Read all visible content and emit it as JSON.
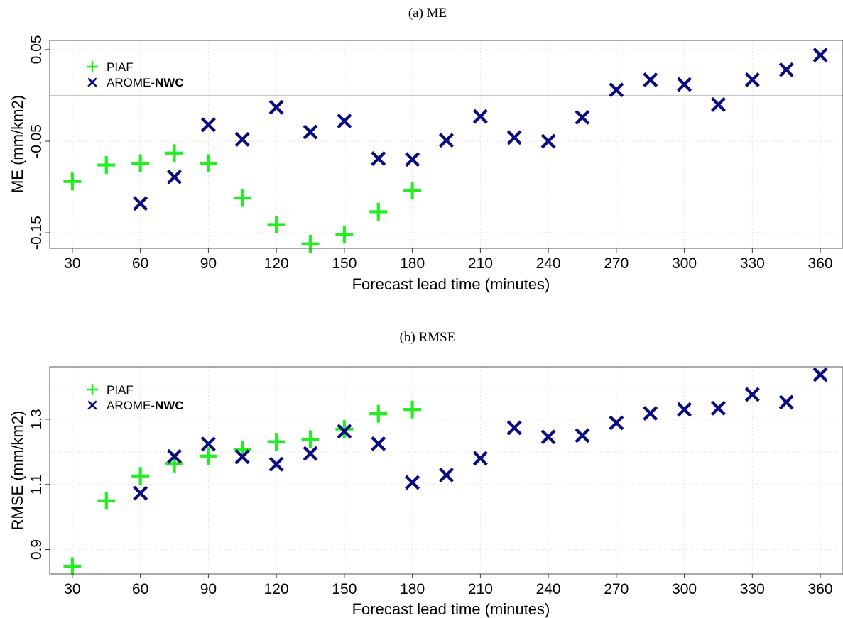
{
  "colors": {
    "piaf": "#22ee22",
    "arome": "#0a0a80",
    "grid": "#e2e2e2",
    "zero_line": "#c8c8c8",
    "axis": "#555555"
  },
  "chart_data": [
    {
      "type": "scatter",
      "title": "(a) ME",
      "xlabel": "Forecast lead time (minutes)",
      "ylabel": "ME (mm/km2)",
      "x_ticks": [
        30,
        60,
        90,
        120,
        150,
        180,
        210,
        240,
        270,
        300,
        330,
        360
      ],
      "x_tick_labels": [
        "30",
        "60",
        "90",
        "120",
        "150",
        "180",
        "210",
        "240",
        "270",
        "300",
        "330",
        "360"
      ],
      "y_ticks": [
        0.05,
        -0.05,
        -0.15
      ],
      "y_tick_labels": [
        "0.05",
        "-0.05",
        "-0.15"
      ],
      "xlim": [
        20,
        370
      ],
      "ylim": [
        -0.167,
        0.06
      ],
      "zero_line": true,
      "grid": true,
      "legend_position": "top-left",
      "legend": [
        {
          "marker": "plus",
          "name": "PIAF",
          "color_key": "piaf"
        },
        {
          "marker": "cross",
          "name_plain": "AROME-",
          "name_bold": "NWC",
          "color_key": "arome"
        }
      ],
      "series": [
        {
          "name": "PIAF",
          "marker": "plus",
          "color_key": "piaf",
          "x": [
            30,
            45,
            60,
            75,
            90,
            105,
            120,
            135,
            150,
            165,
            180
          ],
          "y": [
            -0.094,
            -0.076,
            -0.074,
            -0.063,
            -0.074,
            -0.112,
            -0.141,
            -0.162,
            -0.152,
            -0.127,
            -0.104
          ]
        },
        {
          "name": "AROME-NWC",
          "marker": "cross",
          "color_key": "arome",
          "x": [
            60,
            75,
            90,
            105,
            120,
            135,
            150,
            165,
            180,
            195,
            210,
            225,
            240,
            255,
            270,
            285,
            300,
            315,
            330,
            345,
            360
          ],
          "y": [
            -0.118,
            -0.089,
            -0.032,
            -0.048,
            -0.013,
            -0.04,
            -0.028,
            -0.069,
            -0.07,
            -0.049,
            -0.023,
            -0.046,
            -0.05,
            -0.024,
            0.006,
            0.017,
            0.012,
            -0.01,
            0.017,
            0.028,
            0.044
          ]
        }
      ]
    },
    {
      "type": "scatter",
      "title": "(b) RMSE",
      "xlabel": "Forecast lead time (minutes)",
      "ylabel": "RMSE (mm/km2)",
      "x_ticks": [
        30,
        60,
        90,
        120,
        150,
        180,
        210,
        240,
        270,
        300,
        330,
        360
      ],
      "x_tick_labels": [
        "30",
        "60",
        "90",
        "120",
        "150",
        "180",
        "210",
        "240",
        "270",
        "300",
        "330",
        "360"
      ],
      "y_ticks": [
        0.9,
        1.1,
        1.3
      ],
      "y_tick_labels": [
        "0.9",
        "1.1",
        "1.3"
      ],
      "xlim": [
        20,
        370
      ],
      "ylim": [
        0.825,
        1.461
      ],
      "zero_line": false,
      "grid": true,
      "legend_position": "top-left",
      "legend": [
        {
          "marker": "plus",
          "name": "PIAF",
          "color_key": "piaf"
        },
        {
          "marker": "cross",
          "name_plain": "AROME-",
          "name_bold": "NWC",
          "color_key": "arome"
        }
      ],
      "series": [
        {
          "name": "PIAF",
          "marker": "plus",
          "color_key": "piaf",
          "x": [
            30,
            45,
            60,
            75,
            90,
            105,
            120,
            135,
            150,
            165,
            180
          ],
          "y": [
            0.849,
            1.05,
            1.126,
            1.164,
            1.187,
            1.206,
            1.231,
            1.239,
            1.27,
            1.317,
            1.33
          ]
        },
        {
          "name": "AROME-NWC",
          "marker": "cross",
          "color_key": "arome",
          "x": [
            60,
            75,
            90,
            105,
            120,
            135,
            150,
            165,
            180,
            195,
            210,
            225,
            240,
            255,
            270,
            285,
            300,
            315,
            330,
            345,
            360
          ],
          "y": [
            1.073,
            1.186,
            1.224,
            1.185,
            1.162,
            1.195,
            1.263,
            1.225,
            1.106,
            1.129,
            1.18,
            1.274,
            1.246,
            1.25,
            1.289,
            1.318,
            1.33,
            1.334,
            1.376,
            1.352,
            1.437
          ]
        }
      ]
    }
  ]
}
